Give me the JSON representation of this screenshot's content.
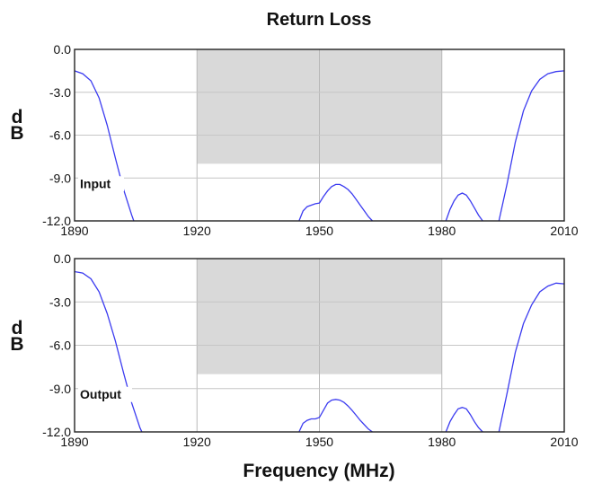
{
  "chart_data": [
    {
      "type": "line",
      "title": "Return Loss",
      "panel_label": "Input",
      "ylabel": "dB",
      "xlim": [
        1890,
        2010
      ],
      "ylim": [
        -12,
        0
      ],
      "xticks": [
        "1890",
        "1920",
        "1950",
        "1980",
        "2010"
      ],
      "yticks": [
        "0.0",
        "-3.0",
        "-6.0",
        "-9.0",
        "-12.0"
      ],
      "grid": true,
      "series_color": "#3b3bf0",
      "passband": {
        "x": [
          1920,
          1980
        ],
        "y": [
          -8.0,
          0
        ],
        "color": "#d9d9d9"
      },
      "series": [
        {
          "x": [
            1890,
            1892,
            1894,
            1896,
            1898,
            1900,
            1902,
            1904,
            1904.5,
            null,
            1945,
            1946,
            1947,
            1948,
            1949,
            1950,
            1951,
            1952,
            1953,
            1954,
            1955,
            1956,
            1957,
            1958,
            1959,
            1960,
            1961,
            1962,
            1963,
            null,
            1981,
            1982,
            1983,
            1984,
            1985,
            1986,
            1987,
            1988,
            1989,
            1990,
            null,
            1994,
            1996,
            1998,
            2000,
            2002,
            2004,
            2006,
            2008,
            2010
          ],
          "y": [
            -1.5,
            -1.7,
            -2.2,
            -3.4,
            -5.3,
            -7.6,
            -9.8,
            -11.6,
            -12,
            null,
            -12,
            -11.3,
            -11.0,
            -10.9,
            -10.8,
            -10.75,
            -10.3,
            -9.9,
            -9.6,
            -9.45,
            -9.45,
            -9.6,
            -9.8,
            -10.1,
            -10.5,
            -10.9,
            -11.3,
            -11.7,
            -12,
            null,
            -12,
            -11.2,
            -10.6,
            -10.2,
            -10.05,
            -10.2,
            -10.6,
            -11.1,
            -11.6,
            -12,
            null,
            -12,
            -9.4,
            -6.5,
            -4.3,
            -2.9,
            -2.1,
            -1.7,
            -1.55,
            -1.5
          ]
        }
      ]
    },
    {
      "type": "line",
      "panel_label": "Output",
      "ylabel": "dB",
      "xlabel": "Frequency (MHz)",
      "xlim": [
        1890,
        2010
      ],
      "ylim": [
        -12,
        0
      ],
      "xticks": [
        "1890",
        "1920",
        "1950",
        "1980",
        "2010"
      ],
      "yticks": [
        "0.0",
        "-3.0",
        "-6.0",
        "-9.0",
        "-12.0"
      ],
      "grid": true,
      "series_color": "#3b3bf0",
      "passband": {
        "x": [
          1920,
          1980
        ],
        "y": [
          -8.0,
          0
        ],
        "color": "#d9d9d9"
      },
      "series": [
        {
          "x": [
            1890,
            1892,
            1894,
            1896,
            1898,
            1900,
            1902,
            1904,
            1906,
            1906.5,
            null,
            1945,
            1946,
            1947,
            1948,
            1949,
            1950,
            1951,
            1952,
            1953,
            1954,
            1955,
            1956,
            1957,
            1958,
            1959,
            1960,
            1961,
            1962,
            1963,
            null,
            1981,
            1982,
            1983,
            1984,
            1985,
            1986,
            1987,
            1988,
            1989,
            1990,
            null,
            1994,
            1996,
            1998,
            2000,
            2002,
            2004,
            2006,
            2008,
            2010
          ],
          "y": [
            -0.9,
            -1.0,
            -1.4,
            -2.3,
            -3.8,
            -5.7,
            -7.9,
            -10.0,
            -11.7,
            -12,
            null,
            -12,
            -11.4,
            -11.2,
            -11.1,
            -11.1,
            -11.0,
            -10.5,
            -10.0,
            -9.8,
            -9.75,
            -9.8,
            -9.95,
            -10.2,
            -10.5,
            -10.85,
            -11.2,
            -11.5,
            -11.8,
            -12,
            null,
            -12,
            -11.3,
            -10.8,
            -10.4,
            -10.3,
            -10.4,
            -10.8,
            -11.3,
            -11.7,
            -12,
            null,
            -12,
            -9.3,
            -6.5,
            -4.5,
            -3.2,
            -2.3,
            -1.9,
            -1.7,
            -1.75
          ]
        }
      ]
    }
  ]
}
